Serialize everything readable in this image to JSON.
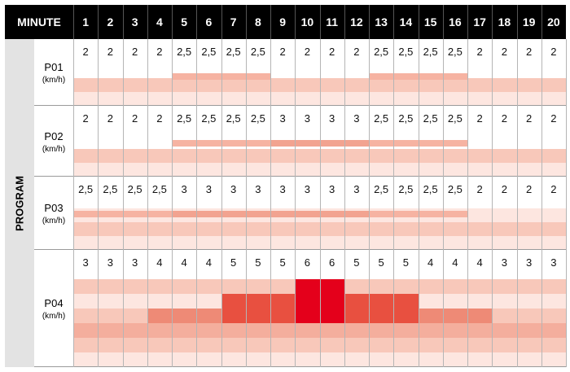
{
  "header": {
    "label": "MINUTE",
    "minutes": [
      "1",
      "2",
      "3",
      "4",
      "5",
      "6",
      "7",
      "8",
      "9",
      "10",
      "11",
      "12",
      "13",
      "14",
      "15",
      "16",
      "17",
      "18",
      "19",
      "20"
    ]
  },
  "side_label": "PROGRAM",
  "colors": {
    "header_bg": "#000000",
    "side_bg": "#e3e3e3",
    "grid_line": "#b5b5b5",
    "shade_light": "#fde6e0",
    "shade_mid": "#f8c8ba",
    "level_2_5": "#f6b3a2",
    "level_3": "#f2a390",
    "level_4": "#ee8a76",
    "level_5": "#e85040",
    "level_6": "#e4001b"
  },
  "programs": [
    {
      "name": "P01",
      "unit": "(km/h)",
      "values": [
        "2",
        "2",
        "2",
        "2",
        "2,5",
        "2,5",
        "2,5",
        "2,5",
        "2",
        "2",
        "2",
        "2",
        "2,5",
        "2,5",
        "2,5",
        "2,5",
        "2",
        "2",
        "2",
        "2"
      ]
    },
    {
      "name": "P02",
      "unit": "(km/h)",
      "values": [
        "2",
        "2",
        "2",
        "2",
        "2,5",
        "2,5",
        "2,5",
        "2,5",
        "3",
        "3",
        "3",
        "3",
        "2,5",
        "2,5",
        "2,5",
        "2,5",
        "2",
        "2",
        "2",
        "2"
      ]
    },
    {
      "name": "P03",
      "unit": "(km/h)",
      "values": [
        "2,5",
        "2,5",
        "2,5",
        "2,5",
        "3",
        "3",
        "3",
        "3",
        "3",
        "3",
        "3",
        "3",
        "2,5",
        "2,5",
        "2,5",
        "2,5",
        "2",
        "2",
        "2",
        "2"
      ]
    },
    {
      "name": "P04",
      "unit": "(km/h)",
      "values": [
        "3",
        "3",
        "3",
        "4",
        "4",
        "4",
        "5",
        "5",
        "5",
        "6",
        "6",
        "5",
        "5",
        "5",
        "4",
        "4",
        "4",
        "3",
        "3",
        "3"
      ]
    }
  ]
}
